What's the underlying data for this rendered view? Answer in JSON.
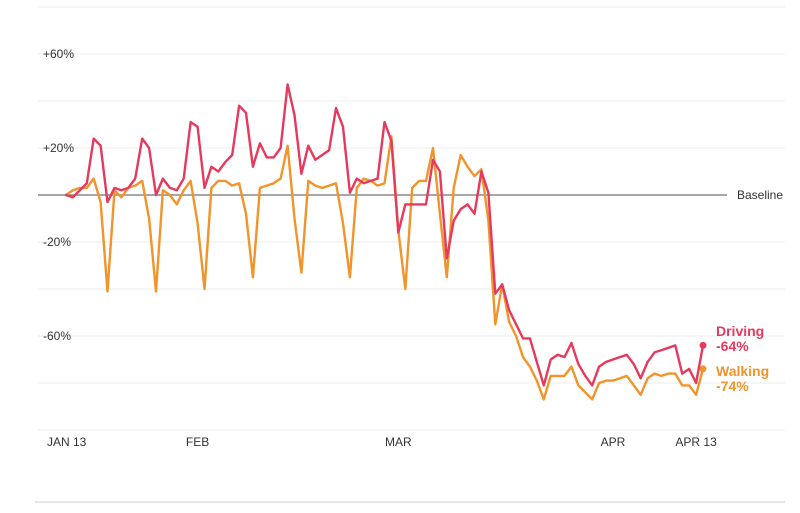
{
  "chart_data": {
    "type": "line",
    "title": "",
    "xlabel": "",
    "ylabel": "",
    "ylim": [
      -100,
      80
    ],
    "y_ticks": [
      {
        "value": 60,
        "label": "+60%"
      },
      {
        "value": 20,
        "label": "+20%"
      },
      {
        "value": -20,
        "label": "-20%"
      },
      {
        "value": -60,
        "label": "-60%"
      }
    ],
    "gridlines_at": [
      80,
      60,
      40,
      20,
      -20,
      -40,
      -60,
      -80,
      -100
    ],
    "baseline": {
      "value": 0,
      "label": "Baseline"
    },
    "x_start": "2020-01-13",
    "x_ticks": [
      {
        "date": "2020-01-13",
        "label": "JAN 13"
      },
      {
        "date": "2020-02-01",
        "label": "FEB"
      },
      {
        "date": "2020-03-01",
        "label": "MAR"
      },
      {
        "date": "2020-04-01",
        "label": "APR"
      },
      {
        "date": "2020-04-13",
        "label": "APR 13"
      }
    ],
    "grid": true,
    "series": [
      {
        "name": "Driving",
        "color": "#e53a5e",
        "end_label": "Driving",
        "end_value_label": "-64%",
        "values": [
          0,
          -1,
          2,
          5,
          24,
          21,
          -3,
          3,
          2,
          3,
          7,
          24,
          20,
          0,
          7,
          3,
          2,
          7,
          31,
          29,
          3,
          12,
          10,
          14,
          17,
          38,
          35,
          12,
          22,
          16,
          16,
          20,
          47,
          34,
          9,
          21,
          15,
          17,
          19,
          37,
          29,
          1,
          7,
          5,
          6,
          7,
          31,
          23,
          -16,
          -4,
          -4,
          -4,
          -4,
          15,
          10,
          -27,
          -11,
          -6,
          -4,
          -8,
          10,
          1,
          -42,
          -38,
          -49,
          -55,
          -61,
          -61,
          -71,
          -81,
          -70,
          -68,
          -69,
          -63,
          -72,
          -77,
          -81,
          -73,
          -71,
          -70,
          -69,
          -68,
          -72,
          -78,
          -71,
          -67,
          -66,
          -65,
          -64,
          -76,
          -74,
          -80,
          -64
        ]
      },
      {
        "name": "Walking",
        "color": "#f0942b",
        "end_label": "Walking",
        "end_value_label": "-74%",
        "values": [
          0,
          2,
          3,
          3,
          7,
          -3,
          -41,
          2,
          -1,
          3,
          4,
          6,
          -10,
          -41,
          2,
          0,
          -4,
          2,
          6,
          -12,
          -40,
          3,
          6,
          6,
          4,
          5,
          -8,
          -35,
          3,
          4,
          5,
          7,
          21,
          -10,
          -33,
          6,
          4,
          3,
          4,
          5,
          -12,
          -35,
          3,
          7,
          6,
          4,
          5,
          25,
          -15,
          -40,
          3,
          6,
          6,
          20,
          -8,
          -35,
          3,
          17,
          12,
          8,
          11,
          -11,
          -55,
          -38,
          -54,
          -60,
          -69,
          -73,
          -79,
          -87,
          -77,
          -77,
          -77,
          -73,
          -81,
          -84,
          -87,
          -80,
          -79,
          -79,
          -78,
          -77,
          -81,
          -85,
          -78,
          -76,
          -77,
          -76,
          -76,
          -81,
          -81,
          -85,
          -74
        ]
      }
    ]
  }
}
